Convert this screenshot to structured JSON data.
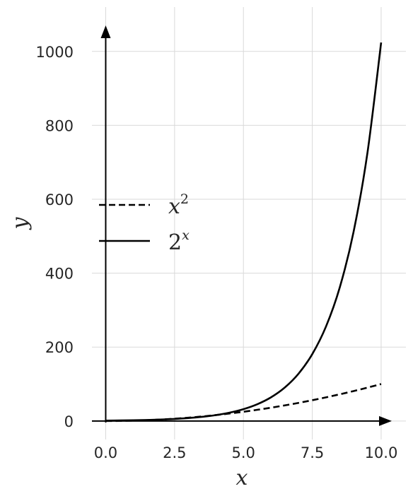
{
  "chart_data": {
    "type": "line",
    "title": "",
    "xlabel": "x",
    "ylabel": "y",
    "xlim": [
      -0.5,
      10.9
    ],
    "ylim": [
      -50,
      1120
    ],
    "xticks": [
      0.0,
      2.5,
      5.0,
      7.5,
      10.0
    ],
    "xtick_labels": [
      "0.0",
      "2.5",
      "5.0",
      "7.5",
      "10.0"
    ],
    "yticks": [
      0,
      200,
      400,
      600,
      800,
      1000
    ],
    "ytick_labels": [
      "0",
      "200",
      "400",
      "600",
      "800",
      "1000"
    ],
    "grid": true,
    "legend_position": "left-middle",
    "series": [
      {
        "name": "x^2",
        "label_base": "x",
        "label_exp": "2",
        "style": "dashed",
        "color": "#000000",
        "x": [
          0,
          0.5,
          1,
          1.5,
          2,
          2.5,
          3,
          3.5,
          4,
          4.5,
          5,
          5.5,
          6,
          6.5,
          7,
          7.5,
          8,
          8.5,
          9,
          9.5,
          10
        ],
        "y": [
          0,
          0.25,
          1,
          2.25,
          4,
          6.25,
          9,
          12.25,
          16,
          20.25,
          25,
          30.25,
          36,
          42.25,
          49,
          56.25,
          64,
          72.25,
          81,
          90.25,
          100
        ]
      },
      {
        "name": "2^x",
        "label_base": "2",
        "label_exp": "x",
        "style": "solid",
        "color": "#000000",
        "x": [
          0,
          0.5,
          1,
          1.5,
          2,
          2.5,
          3,
          3.5,
          4,
          4.5,
          5,
          5.5,
          6,
          6.5,
          7,
          7.5,
          8,
          8.5,
          9,
          9.5,
          10
        ],
        "y": [
          1,
          1.41,
          2,
          2.83,
          4,
          5.66,
          8,
          11.31,
          16,
          22.63,
          32,
          45.25,
          64,
          90.51,
          128,
          181.02,
          256,
          362.04,
          512,
          724.08,
          1024
        ]
      }
    ]
  }
}
